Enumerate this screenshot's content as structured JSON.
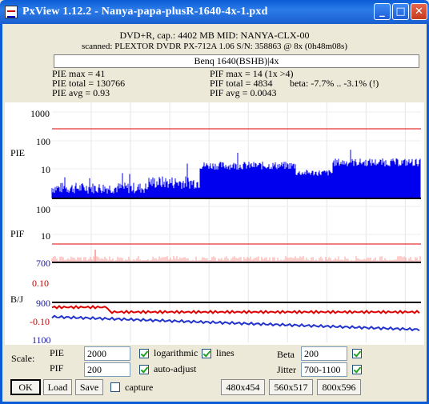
{
  "window": {
    "title": "PxView 1.12.2  -  Nanya-papa-plusR-1640-4x-1.pxd"
  },
  "disc": {
    "line1": "DVD+R, cap.: 4402 MB MID: NANYA-CLX-00",
    "line2": "scanned: PLEXTOR DVDR  PX-712A 1.06 S/N: 358863 @ 8x (0h48m08s)",
    "drive": "Benq 1640(BSHB)|4x"
  },
  "stats": {
    "pie_max": "PIE max = 41",
    "pie_total": "PIE total = 130766",
    "pie_avg": "PIE avg = 0.93",
    "pif_max": "PIF max = 14 (1x >4)",
    "pif_total": "PIF total = 4834",
    "pif_avg": "PIF avg = 0.0043",
    "beta": "beta: -7.7% .. -3.1% (!)"
  },
  "graph": {
    "pie_label": "PIE",
    "pie_ticks": [
      "1000",
      "100",
      "10"
    ],
    "pif_label": "PIF",
    "pif_ticks": [
      "100",
      "10"
    ],
    "bj_label": "B/J",
    "jitter_top": "700",
    "beta_tick_pos": "0.10",
    "jitter_mid": "900",
    "beta_tick_neg": "-0.10",
    "jitter_bottom": "1100",
    "colors": {
      "pie": "#0000ee",
      "pif": "#ff9999",
      "threshold": "#dd0000",
      "beta": "#dd0000",
      "jitter": "#2233cc"
    }
  },
  "controls": {
    "scale_label": "Scale:",
    "pie_label": "PIE",
    "pie_value": "2000",
    "pif_label": "PIF",
    "pif_value": "200",
    "logarithmic_label": "logarithmic",
    "logarithmic_checked": true,
    "lines_label": "lines",
    "lines_checked": true,
    "auto_adjust_label": "auto-adjust",
    "auto_adjust_checked": true,
    "beta_label": "Beta",
    "beta_value": "200",
    "beta_checked": true,
    "jitter_label": "Jitter",
    "jitter_value": "700-1100",
    "jitter_checked": true,
    "ok_label": "OK",
    "load_label": "Load",
    "save_label": "Save",
    "capture_label": "capture",
    "capture_checked": false,
    "size1_label": "480x454",
    "size2_label": "560x517",
    "size3_label": "800x596"
  }
}
